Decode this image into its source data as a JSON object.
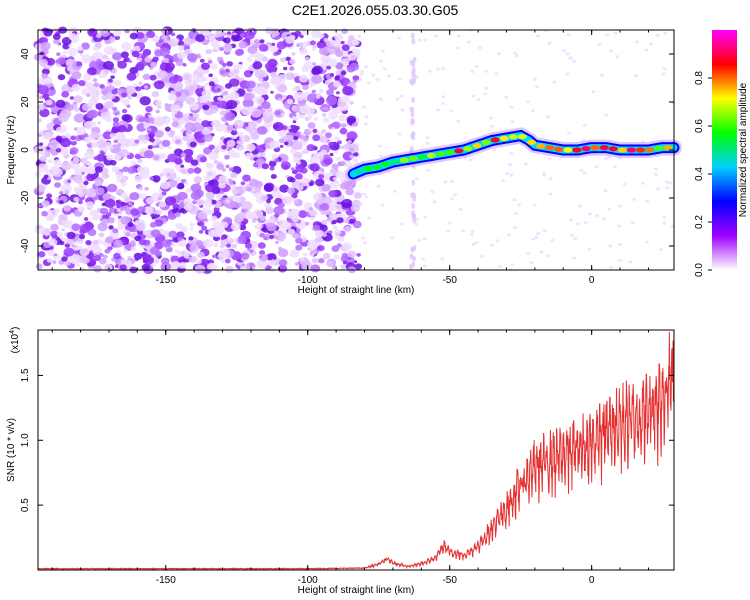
{
  "title": "C2E1.2026.055.03.30.G05",
  "chart_data": [
    {
      "type": "heatmap",
      "name": "spectrogram",
      "xlabel": "Height of straight line (km)",
      "ylabel": "Frequency (Hz)",
      "xlim": [
        -195,
        29
      ],
      "ylim": [
        -50,
        50
      ],
      "xticks": [
        -150,
        -100,
        -50,
        0
      ],
      "yticks": [
        -40,
        -20,
        0,
        20,
        40
      ],
      "colorbar": {
        "label": "Normalized spectral amplitude",
        "range": [
          0,
          1
        ],
        "ticks": [
          "0.0",
          "0.2",
          "0.4",
          "0.6",
          "0.8"
        ],
        "colors": [
          "#ffffff",
          "#a000ff",
          "#0000ff",
          "#00d0ff",
          "#00ff00",
          "#ffff00",
          "#ff0000",
          "#ff00ff"
        ]
      },
      "noise_region_end_x": -82,
      "signal_track": {
        "x": [
          -84,
          -80,
          -75,
          -70,
          -65,
          -60,
          -55,
          -50,
          -45,
          -40,
          -35,
          -30,
          -25,
          -22,
          -20,
          -15,
          -10,
          -5,
          0,
          5,
          10,
          15,
          20,
          25,
          29
        ],
        "y": [
          -10,
          -8,
          -7,
          -5,
          -4,
          -3,
          -2,
          -1,
          0,
          2,
          4,
          5,
          6,
          4,
          2,
          1,
          0,
          0,
          1,
          1,
          0,
          0,
          0,
          1,
          1
        ],
        "amplitude": [
          0.4,
          0.5,
          0.55,
          0.6,
          0.6,
          0.65,
          0.7,
          0.75,
          0.8,
          0.75,
          0.8,
          0.7,
          0.65,
          0.6,
          0.85,
          0.8,
          0.7,
          0.9,
          0.75,
          0.85,
          0.7,
          0.9,
          0.85,
          0.7,
          0.65
        ]
      }
    },
    {
      "type": "line",
      "name": "snr",
      "xlabel": "Height of straight line (km)",
      "ylabel": "SNR (10 * v/v)",
      "yscale_label": "(x10",
      "yscale_exp": "4",
      "xlim": [
        -195,
        29
      ],
      "ylim": [
        0,
        1.85
      ],
      "xticks": [
        -150,
        -100,
        -50,
        0
      ],
      "yticks": [
        0.5,
        1.0,
        1.5
      ],
      "ytick_labels": [
        "0.5",
        "1.0",
        "1.5"
      ],
      "color": "#e53030",
      "envelope": {
        "x": [
          -195,
          -100,
          -80,
          -75,
          -72,
          -70,
          -65,
          -60,
          -55,
          -52,
          -50,
          -45,
          -40,
          -35,
          -30,
          -25,
          -20,
          -15,
          -10,
          -5,
          0,
          5,
          10,
          15,
          20,
          25,
          29
        ],
        "y": [
          0.01,
          0.01,
          0.015,
          0.05,
          0.09,
          0.06,
          0.03,
          0.05,
          0.1,
          0.2,
          0.15,
          0.12,
          0.2,
          0.35,
          0.5,
          0.7,
          0.85,
          0.9,
          0.95,
          1.0,
          1.05,
          1.15,
          1.2,
          1.25,
          1.3,
          1.45,
          1.6
        ]
      }
    }
  ]
}
